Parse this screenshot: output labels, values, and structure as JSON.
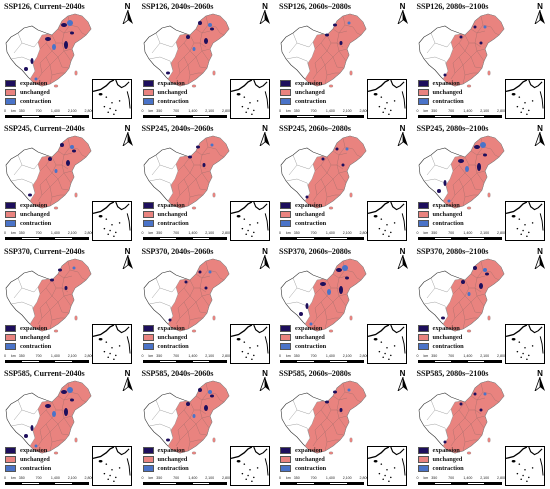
{
  "figure": {
    "panels": [
      {
        "title": "SSP126, Current–2040s",
        "variant": 0
      },
      {
        "title": "SSP126, 2040s–2060s",
        "variant": 1
      },
      {
        "title": "SSP126, 2060s–2080s",
        "variant": 2
      },
      {
        "title": "SSP126, 2080s–2100s",
        "variant": 3
      },
      {
        "title": "SSP245, Current–2040s",
        "variant": 1
      },
      {
        "title": "SSP245, 2040s–2060s",
        "variant": 2
      },
      {
        "title": "SSP245, 2060s–2080s",
        "variant": 3
      },
      {
        "title": "SSP245, 2080s–2100s",
        "variant": 0
      },
      {
        "title": "SSP370, Current–2040s",
        "variant": 2
      },
      {
        "title": "SSP370, 2040s–2060s",
        "variant": 3
      },
      {
        "title": "SSP370, 2060s–2080s",
        "variant": 0
      },
      {
        "title": "SSP370, 2080s–2100s",
        "variant": 1
      },
      {
        "title": "SSP585, Current–2040s",
        "variant": 0
      },
      {
        "title": "SSP585, 2040s–2060s",
        "variant": 1
      },
      {
        "title": "SSP585, 2060s–2080s",
        "variant": 2
      },
      {
        "title": "SSP585, 2080s–2100s",
        "variant": 3
      }
    ],
    "north_label": "N",
    "legend": [
      {
        "label": "expansion",
        "color": "#1d0e5c"
      },
      {
        "label": "unchanged",
        "color": "#e9837f"
      },
      {
        "label": "contraction",
        "color": "#4a73c8"
      }
    ],
    "scale_labels": [
      "0",
      "350",
      "700",
      "1,400",
      "2,100",
      "2,800"
    ],
    "scale_unit": "km",
    "colors": {
      "unchanged": "#e9837f",
      "expansion": "#1d0e5c",
      "contraction": "#4a73c8",
      "province_border": "#8a8a8a",
      "outline": "#333333",
      "background_land": "#ffffff"
    }
  }
}
